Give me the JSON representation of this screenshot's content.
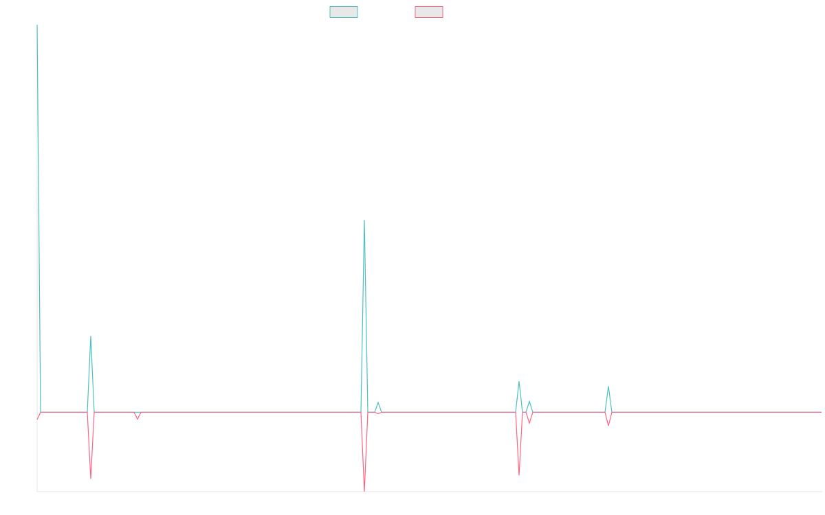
{
  "chart_data": {
    "type": "line",
    "x": [
      0,
      1,
      14.6,
      15.6,
      16.6,
      28.2,
      29.2,
      30.2,
      94.2,
      95.2,
      96.2,
      98.2,
      99.2,
      100.2,
      139.2,
      140.2,
      141.2,
      142.2,
      143.2,
      144.2,
      165.2,
      166.2,
      167.2,
      228.2
    ],
    "series": [
      {
        "color": "#4bc0c0",
        "values": [
          100,
          0,
          0,
          19.7,
          0,
          0,
          0,
          0,
          0,
          49.6,
          0,
          0,
          2.5,
          0,
          0,
          8,
          0,
          0,
          2.8,
          0,
          0,
          6.7,
          0,
          0
        ]
      },
      {
        "color": "#ff6384",
        "values": [
          -1.9,
          0,
          0,
          -17.2,
          0,
          0,
          -1.8,
          0,
          0,
          -20.5,
          0,
          0,
          -0.4,
          0,
          0,
          -16.3,
          0,
          0,
          -2.8,
          0,
          0,
          -3.5,
          0,
          0
        ]
      }
    ],
    "xlim": [
      0,
      228.2
    ],
    "ylim": [
      -20.5,
      100
    ]
  }
}
